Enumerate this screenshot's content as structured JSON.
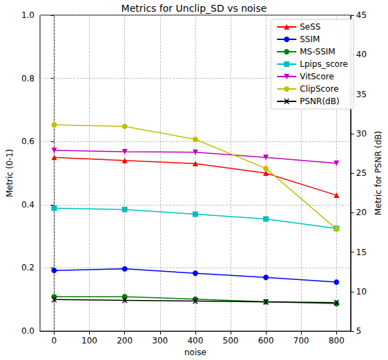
{
  "chart_data": {
    "type": "line",
    "title": "Metrics for Unclip_SD vs noise",
    "x_label": "noise",
    "y_label": "Metric (0-1)",
    "y2_label": "Metric for PSNR (dB)",
    "x": [
      0,
      200,
      400,
      600,
      800
    ],
    "xlim": [
      -40,
      840
    ],
    "xticks": [
      0,
      100,
      200,
      300,
      400,
      500,
      600,
      700,
      800
    ],
    "ylim": [
      0,
      1
    ],
    "yticks": [
      {
        "value": 0,
        "label": "0.0"
      },
      {
        "value": 0.2,
        "label": "0.2"
      },
      {
        "value": 0.4,
        "label": "0.4"
      },
      {
        "value": 0.6,
        "label": "0.6"
      },
      {
        "value": 0.8,
        "label": "0.8"
      },
      {
        "value": 1,
        "label": "1.0"
      }
    ],
    "y2lim": [
      5,
      45
    ],
    "y2ticks": [
      5,
      10,
      15,
      20,
      25,
      30,
      35,
      40,
      45
    ],
    "grid": true,
    "legend": "upper right",
    "series": [
      {
        "name": "SeSS",
        "color": "#ff0000",
        "marker": "triangle_up",
        "values": [
          0.55,
          0.54,
          0.53,
          0.5,
          0.43
        ]
      },
      {
        "name": "SSIM",
        "color": "#0000ff",
        "marker": "circle",
        "values": [
          0.192,
          0.197,
          0.183,
          0.17,
          0.155
        ]
      },
      {
        "name": "MS-SSIM",
        "color": "#008000",
        "marker": "circle",
        "values": [
          0.109,
          0.109,
          0.101,
          0.093,
          0.087
        ]
      },
      {
        "name": "Lpips_score",
        "color": "#00bfbf",
        "marker": "square",
        "values": [
          0.389,
          0.385,
          0.37,
          0.355,
          0.325
        ]
      },
      {
        "name": "VitScore",
        "color": "#bf00bf",
        "marker": "triangle_down",
        "values": [
          0.572,
          0.568,
          0.566,
          0.55,
          0.531
        ]
      },
      {
        "name": "ClipScore",
        "color": "#bfbf00",
        "marker": "circle",
        "values": [
          0.653,
          0.648,
          0.607,
          0.515,
          0.323
        ]
      },
      {
        "name": "PSNR(dB)",
        "color": "#000000",
        "marker": "x",
        "axis": "y2",
        "values": [
          9.0,
          8.9,
          8.8,
          8.7,
          8.6
        ]
      }
    ]
  }
}
